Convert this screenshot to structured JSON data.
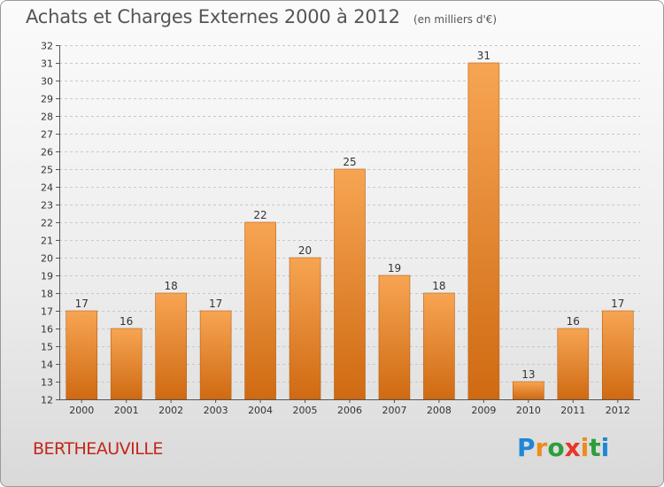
{
  "title": "Achats et Charges Externes 2000 à 2012",
  "unit": "(en milliers d'€)",
  "town": "BERTHEAUVILLE",
  "logo": {
    "letters": [
      "P",
      "r",
      "o",
      "x",
      "i",
      "t",
      "i"
    ],
    "colors": [
      "#1f87d6",
      "#f08a1c",
      "#2e9e3a",
      "#e8352a",
      "#f08a1c",
      "#2e9e3a",
      "#1f87d6"
    ]
  },
  "colors": {
    "bar_top": "#f7a553",
    "bar_bottom": "#cf6a12",
    "bar_edge": "#b85e14"
  },
  "chart_data": {
    "type": "bar",
    "categories": [
      "2000",
      "2001",
      "2002",
      "2003",
      "2004",
      "2005",
      "2006",
      "2007",
      "2008",
      "2009",
      "2010",
      "2011",
      "2012"
    ],
    "values": [
      17,
      16,
      18,
      17,
      22,
      20,
      25,
      19,
      18,
      31,
      13,
      16,
      17
    ],
    "ylim": [
      12,
      32
    ],
    "yticks": [
      12,
      13,
      14,
      15,
      16,
      17,
      18,
      19,
      20,
      21,
      22,
      23,
      24,
      25,
      26,
      27,
      28,
      29,
      30,
      31,
      32
    ],
    "grid": true
  }
}
